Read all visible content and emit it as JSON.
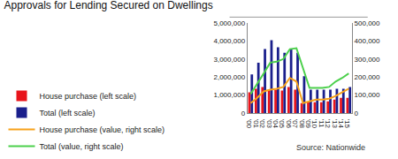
{
  "chart_data": {
    "type": "bar",
    "title": "Approvals for Lending Secured on Dwellings",
    "annotations": [
      {
        "text": "Source: Nationwide"
      }
    ],
    "categories": [
      "'00",
      "'01",
      "'02",
      "'03",
      "'04",
      "'05",
      "'06",
      "'07",
      "'08",
      "'09",
      "'10",
      "'11",
      "'12",
      "'13",
      "'14",
      "'15"
    ],
    "series": [
      {
        "name": "House purchase (left scale)",
        "type": "bar",
        "color": "#e8141b",
        "values": [
          1150000,
          1350000,
          1450000,
          1300000,
          1300000,
          1250000,
          1450000,
          1300000,
          550000,
          600000,
          600000,
          600000,
          650000,
          750000,
          850000,
          850000
        ]
      },
      {
        "name": "Total (left scale)",
        "type": "bar",
        "color": "#1a1f8c",
        "values": [
          2150000,
          2800000,
          3550000,
          4050000,
          3650000,
          3350000,
          3550000,
          3350000,
          2050000,
          1300000,
          1300000,
          1300000,
          1300000,
          1350000,
          1350000,
          1450000
        ]
      },
      {
        "name": "House purchase (value, right scale)",
        "type": "line",
        "axis": "y2",
        "color": "#f7a21b",
        "values": [
          55000,
          85000,
          120000,
          130000,
          135000,
          145000,
          195000,
          175000,
          55000,
          65000,
          75000,
          75000,
          80000,
          95000,
          115000,
          135000
        ]
      },
      {
        "name": "Total (value, right scale)",
        "type": "line",
        "axis": "y2",
        "color": "#4cd04c",
        "values": [
          105000,
          160000,
          220000,
          280000,
          285000,
          300000,
          355000,
          360000,
          245000,
          140000,
          140000,
          140000,
          145000,
          175000,
          195000,
          220000
        ]
      }
    ],
    "ylim": [
      0,
      5000000
    ],
    "yticks": [
      0,
      {
        "value": 1000000,
        "label": "1,000,000"
      },
      {
        "value": 2000000,
        "label": "2,000,000"
      },
      {
        "value": 3000000,
        "label": "3,000,000"
      },
      {
        "value": 4000000,
        "label": "4,000,000"
      },
      {
        "value": 5000000,
        "label": "5,000,000"
      }
    ],
    "y2lim": [
      0,
      500000
    ],
    "y2ticks": [
      0,
      {
        "value": 100000,
        "label": "100,000"
      },
      {
        "value": 200000,
        "label": "200,000"
      },
      {
        "value": 300000,
        "label": "300,000"
      },
      {
        "value": 400000,
        "label": "400,000"
      },
      {
        "value": 500000,
        "label": "500,000"
      }
    ],
    "grid": false,
    "legend": "bottom"
  }
}
